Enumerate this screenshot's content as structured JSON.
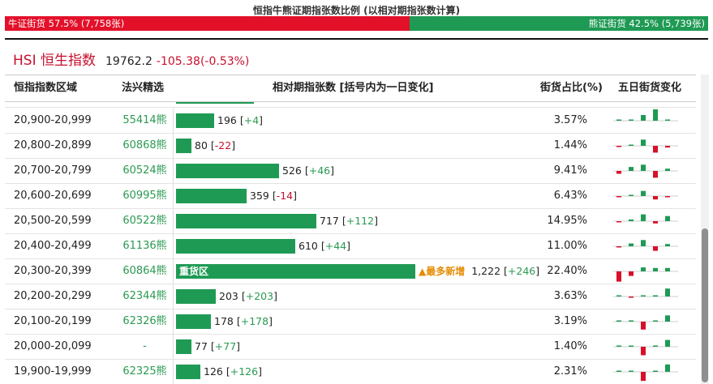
{
  "top": {
    "title": "恒指牛熊证期指张数比例 (以相对期指张数计算)",
    "bull_label": "牛证街货 57.5% (7,758张)",
    "bear_label": "熊证街货 42.5% (5,739张)",
    "bull_ratio": 0.575,
    "bull_color": "#e3102a",
    "bear_color": "#1f9a55"
  },
  "index": {
    "name": "HSI 恒生指数",
    "price": "19762.2",
    "change": "-105.38(-0.53%)"
  },
  "columns": {
    "range": "恒指指数区域",
    "pick": "法兴精选",
    "contracts": "相对期指张数 [括号内为一日变化]",
    "share": "街货占比(%)",
    "five_day": "五日街货变化"
  },
  "max_contracts": 1222,
  "rows": [
    {
      "range": "20,900-20,999",
      "pick": "55414熊",
      "contracts": 196,
      "value_text": "196",
      "change_text": "+4",
      "dir": "up",
      "share": "3.57%",
      "spark": [
        0.05,
        0.0,
        0.5,
        1.0,
        0.05
      ]
    },
    {
      "range": "20,800-20,899",
      "pick": "60868熊",
      "contracts": 80,
      "value_text": "80",
      "change_text": "-22",
      "dir": "down",
      "share": "1.44%",
      "spark": [
        -0.05,
        0.0,
        0.55,
        -0.6,
        -0.15
      ]
    },
    {
      "range": "20,700-20,799",
      "pick": "60524熊",
      "contracts": 526,
      "value_text": "526",
      "change_text": "+46",
      "dir": "up",
      "share": "9.41%",
      "spark": [
        -0.25,
        0.35,
        0.55,
        -0.6,
        0.2
      ]
    },
    {
      "range": "20,600-20,699",
      "pick": "60995熊",
      "contracts": 359,
      "value_text": "359",
      "change_text": "-14",
      "dir": "down",
      "share": "6.43%",
      "spark": [
        -0.05,
        0.05,
        0.45,
        -0.3,
        -0.1
      ]
    },
    {
      "range": "20,500-20,599",
      "pick": "60522熊",
      "contracts": 717,
      "value_text": "717",
      "change_text": "+112",
      "dir": "up",
      "share": "14.95%",
      "spark": [
        -0.1,
        0.15,
        0.6,
        -0.2,
        0.45
      ]
    },
    {
      "range": "20,400-20,499",
      "pick": "61136熊",
      "contracts": 610,
      "value_text": "610",
      "change_text": "+44",
      "dir": "up",
      "share": "11.00%",
      "spark": [
        -0.05,
        0.25,
        0.55,
        -0.4,
        0.2
      ]
    },
    {
      "range": "20,300-20,399",
      "pick": "60864熊",
      "contracts": 1222,
      "value_text": "1,222",
      "change_text": "+246",
      "dir": "up",
      "share": "22.40%",
      "label": "重货区",
      "note": "▲最多新增",
      "spark": [
        -0.9,
        -0.4,
        0.35,
        0.3,
        0.3
      ]
    },
    {
      "range": "20,200-20,299",
      "pick": "62344熊",
      "contracts": 203,
      "value_text": "203",
      "change_text": "+203",
      "dir": "up",
      "share": "3.63%",
      "spark": [
        0.05,
        -0.05,
        0.0,
        0.0,
        0.7
      ]
    },
    {
      "range": "20,100-20,199",
      "pick": "62326熊",
      "contracts": 178,
      "value_text": "178",
      "change_text": "+178",
      "dir": "up",
      "share": "3.19%",
      "spark": [
        0.0,
        0.0,
        -0.7,
        0.0,
        0.55
      ]
    },
    {
      "range": "20,000-20,099",
      "pick": "-",
      "contracts": 77,
      "value_text": "77",
      "change_text": "+77",
      "dir": "up",
      "share": "1.40%",
      "spark": [
        0.0,
        0.0,
        -0.75,
        0.0,
        0.6
      ]
    },
    {
      "range": "19,900-19,999",
      "pick": "62325熊",
      "contracts": 126,
      "value_text": "126",
      "change_text": "+126",
      "dir": "up",
      "share": "2.31%",
      "spark": [
        0.0,
        0.0,
        -0.8,
        0.0,
        0.65
      ]
    }
  ]
}
